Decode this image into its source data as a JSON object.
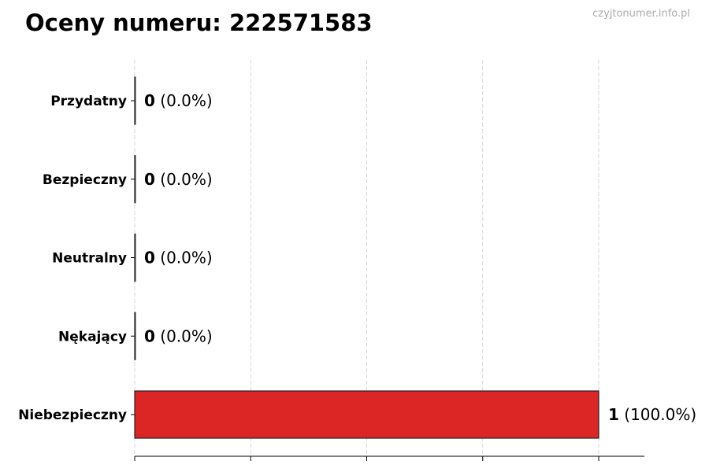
{
  "title": "Oceny numeru: 222571583",
  "watermark": "czyjtonumer.info.pl",
  "chart_data": {
    "type": "bar",
    "orientation": "horizontal",
    "title": "Oceny numeru: 222571583",
    "categories": [
      "Przydatny",
      "Bezpieczny",
      "Neutralny",
      "Nękający",
      "Niebezpieczny"
    ],
    "values": [
      0,
      0,
      0,
      0,
      1
    ],
    "data_labels": [
      {
        "count": "0",
        "pct": "(0.0%)"
      },
      {
        "count": "0",
        "pct": "(0.0%)"
      },
      {
        "count": "0",
        "pct": "(0.0%)"
      },
      {
        "count": "0",
        "pct": "(0.0%)"
      },
      {
        "count": "1",
        "pct": "(100.0%)"
      }
    ],
    "xlim": [
      0,
      1.1
    ],
    "xticks": [
      0,
      0.25,
      0.5,
      0.75,
      1.0
    ],
    "xtick_labels_shown": false,
    "grid": "vertical dashed",
    "bar_color": "#dc2626",
    "edge_color": "#222222"
  }
}
